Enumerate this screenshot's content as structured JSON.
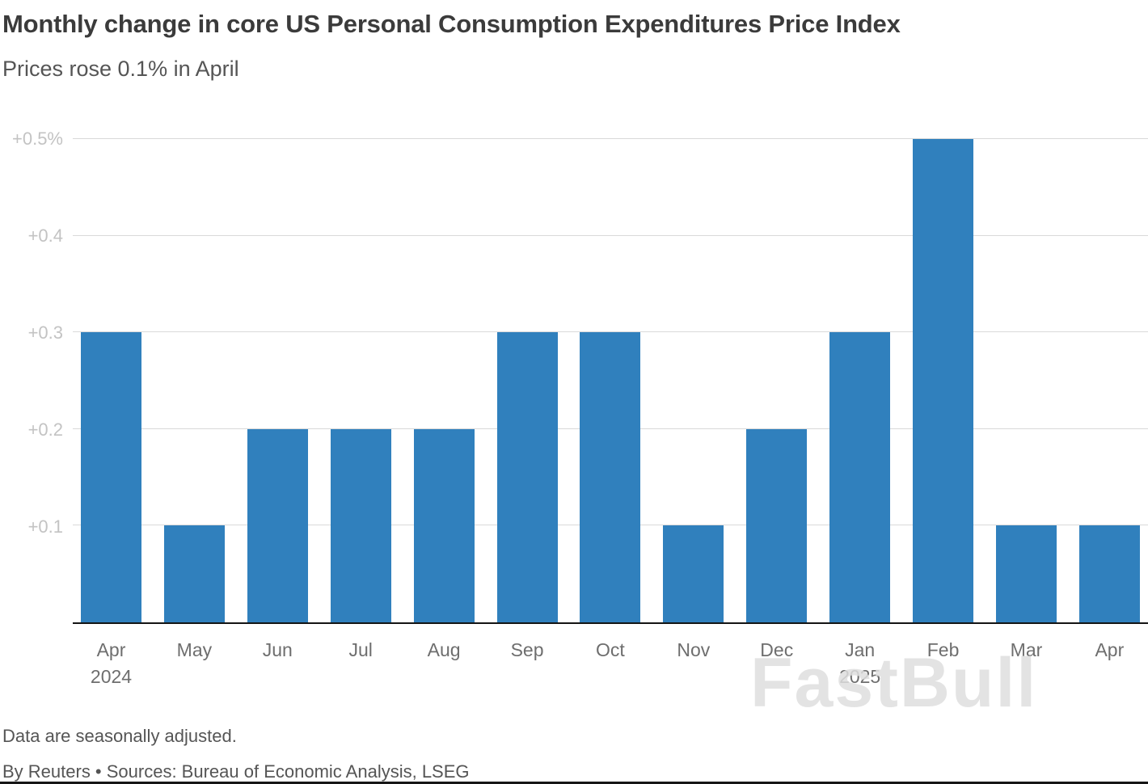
{
  "header": {
    "title": "Monthly change in core US Personal Consumption Expenditures Price Index",
    "subtitle": "Prices rose 0.1% in April"
  },
  "chart_data": {
    "type": "bar",
    "title": "Monthly change in core US Personal Consumption Expenditures Price Index",
    "subtitle": "Prices rose 0.1% in April",
    "categories": [
      "Apr",
      "May",
      "Jun",
      "Jul",
      "Aug",
      "Sep",
      "Oct",
      "Nov",
      "Dec",
      "Jan",
      "Feb",
      "Mar",
      "Apr"
    ],
    "sublabels": [
      "2024",
      "",
      "",
      "",
      "",
      "",
      "",
      "",
      "",
      "2025",
      "",
      "",
      ""
    ],
    "values": [
      0.3,
      0.1,
      0.2,
      0.2,
      0.2,
      0.3,
      0.3,
      0.1,
      0.2,
      0.3,
      0.5,
      0.1,
      0.1
    ],
    "unit": "%",
    "xlabel": "",
    "ylabel": "",
    "ylim": [
      0,
      0.5
    ],
    "yticks": [
      {
        "value": 0.1,
        "label": "+0.1"
      },
      {
        "value": 0.2,
        "label": "+0.2"
      },
      {
        "value": 0.3,
        "label": "+0.3"
      },
      {
        "value": 0.4,
        "label": "+0.4"
      },
      {
        "value": 0.5,
        "label": "+0.5%"
      }
    ],
    "grid": true,
    "legend": false,
    "bar_color": "#3080bd"
  },
  "footer": {
    "note": "Data are seasonally adjusted.",
    "source": "By Reuters • Sources: Bureau of Economic Analysis, LSEG"
  },
  "watermark": {
    "text": "FastBull"
  },
  "colors": {
    "bar": "#3080bd",
    "gridline": "#d9d9d9",
    "axis_line": "#141414",
    "title_text": "#3b3b3b",
    "subtitle_text": "#555555",
    "ytick_text": "#c3c3c3",
    "xtick_text": "#6e6e6e",
    "watermark": "#dedede"
  }
}
